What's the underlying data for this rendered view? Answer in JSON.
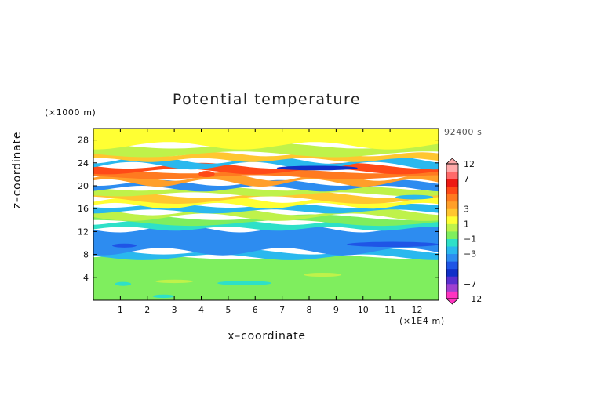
{
  "chart_data": {
    "type": "heatmap",
    "title": "Potential temperature",
    "xlabel": "x–coordinate",
    "ylabel": "z–coordinate",
    "x_unit_label": "(×1E4 m)",
    "y_unit_label": "(×1000 m)",
    "time_label": "92400 s",
    "xlim": [
      0,
      12.8
    ],
    "ylim": [
      0,
      30
    ],
    "x_ticks": [
      1,
      2,
      3,
      4,
      5,
      6,
      7,
      8,
      9,
      10,
      11,
      12
    ],
    "y_ticks": [
      4,
      8,
      12,
      16,
      20,
      24,
      28
    ],
    "colorbar": {
      "boundaries": [
        -12,
        -9,
        -7,
        -6,
        -5,
        -4,
        -3,
        -2,
        -1,
        0,
        1,
        2,
        3,
        4,
        5,
        6,
        7,
        9,
        12
      ],
      "tick_labels": [
        "12",
        "7",
        "3",
        "1",
        "−1",
        "−3",
        "−7",
        "−12"
      ],
      "tick_values": [
        12,
        7,
        3,
        1,
        -1,
        -3,
        -7,
        -12
      ],
      "colors": [
        "#ff33c0",
        "#a040d0",
        "#5a2fcf",
        "#1030c8",
        "#1f55e6",
        "#2d8cf0",
        "#2ab8ee",
        "#2ee0c8",
        "#7fee5e",
        "#bff24a",
        "#ffff33",
        "#ffc630",
        "#ff9f2a",
        "#ff7a20",
        "#ff4a17",
        "#ee1a14",
        "#ff6a6a",
        "#ffaaaa"
      ]
    },
    "bands": [
      {
        "z_min": 0,
        "z_max": 7.5,
        "value": -0.5
      },
      {
        "z_min": 7.5,
        "z_max": 8.5,
        "value": -2.5
      },
      {
        "z_min": 8.5,
        "z_max": 12.5,
        "value": -3.5
      },
      {
        "z_min": 12.5,
        "z_max": 13.5,
        "value": -1.5
      },
      {
        "z_min": 13.5,
        "z_max": 14.5,
        "value": -0.5
      },
      {
        "z_min": 14.5,
        "z_max": 15.5,
        "value": 0.5
      },
      {
        "z_min": 15.5,
        "z_max": 16.5,
        "value": -2.5
      },
      {
        "z_min": 16.5,
        "z_max": 17.5,
        "value": 1.5
      },
      {
        "z_min": 17.5,
        "z_max": 18.5,
        "value": 2.5
      },
      {
        "z_min": 18.5,
        "z_max": 19.5,
        "value": 0.5
      },
      {
        "z_min": 19.5,
        "z_max": 20.5,
        "value": -3.5
      },
      {
        "z_min": 20.5,
        "z_max": 21.5,
        "value": 3.5
      },
      {
        "z_min": 21.5,
        "z_max": 22.5,
        "value": 4.5
      },
      {
        "z_min": 22.5,
        "z_max": 23.5,
        "value": 5.5
      },
      {
        "z_min": 23.5,
        "z_max": 24.5,
        "value": -2.5
      },
      {
        "z_min": 24.5,
        "z_max": 25.5,
        "value": 2.5
      },
      {
        "z_min": 25.5,
        "z_max": 27,
        "value": 0.5
      },
      {
        "z_min": 27,
        "z_max": 30,
        "value": 1.5
      }
    ],
    "features": [
      {
        "x_min": 0.7,
        "x_max": 1.6,
        "z_min": 9.2,
        "z_max": 9.9,
        "value": -4.5
      },
      {
        "x_min": 9.4,
        "x_max": 12.8,
        "z_min": 9.3,
        "z_max": 10.2,
        "value": -4.5
      },
      {
        "x_min": 6.8,
        "x_max": 9.8,
        "z_min": 22.7,
        "z_max": 23.5,
        "value": -5.5
      },
      {
        "x_min": 3.9,
        "x_max": 4.5,
        "z_min": 21.5,
        "z_max": 22.6,
        "value": 5.5
      },
      {
        "x_min": 4.6,
        "x_max": 6.6,
        "z_min": 2.6,
        "z_max": 3.4,
        "value": -1.5
      },
      {
        "x_min": 0.8,
        "x_max": 1.4,
        "z_min": 2.5,
        "z_max": 3.2,
        "value": -1.5
      },
      {
        "x_min": 2.2,
        "x_max": 3.0,
        "z_min": 0.4,
        "z_max": 1.0,
        "value": -1.5
      },
      {
        "x_min": 2.3,
        "x_max": 3.7,
        "z_min": 3.0,
        "z_max": 3.6,
        "value": 0.5
      },
      {
        "x_min": 7.8,
        "x_max": 9.2,
        "z_min": 4.1,
        "z_max": 4.8,
        "value": 0.5
      },
      {
        "x_min": 11.2,
        "x_max": 12.6,
        "z_min": 17.6,
        "z_max": 18.4,
        "value": -2.5
      }
    ]
  }
}
